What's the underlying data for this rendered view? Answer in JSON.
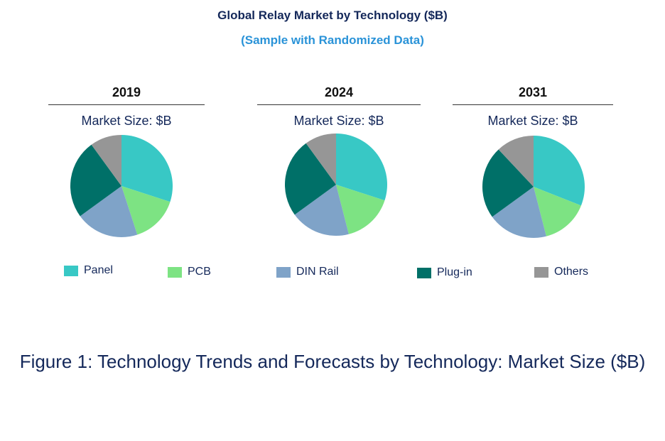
{
  "title": "Global Relay Market by Technology ($B)",
  "subtitle": "(Sample with Randomized Data)",
  "caption": "Figure 1: Technology Trends and Forecasts by Technology: Market Size ($B)",
  "chart_data": [
    {
      "type": "pie",
      "title": "2019",
      "subtitle": "Market Size: $B",
      "categories": [
        "Panel",
        "PCB",
        "DIN Rail",
        "Plug-in",
        "Others"
      ],
      "values": [
        30,
        15,
        20,
        25,
        10
      ]
    },
    {
      "type": "pie",
      "title": "2024",
      "subtitle": "Market Size: $B",
      "categories": [
        "Panel",
        "PCB",
        "DIN Rail",
        "Plug-in",
        "Others"
      ],
      "values": [
        30,
        16,
        19,
        25,
        10
      ]
    },
    {
      "type": "pie",
      "title": "2031",
      "subtitle": "Market Size: $B",
      "categories": [
        "Panel",
        "PCB",
        "DIN Rail",
        "Plug-in",
        "Others"
      ],
      "values": [
        31,
        15,
        19,
        23,
        12
      ]
    }
  ],
  "legend": [
    {
      "label": "Panel",
      "color": "#38c8c5"
    },
    {
      "label": "PCB",
      "color": "#7de383"
    },
    {
      "label": "DIN Rail",
      "color": "#7fa3c8"
    },
    {
      "label": "Plug-in",
      "color": "#007068"
    },
    {
      "label": "Others",
      "color": "#969696"
    }
  ]
}
